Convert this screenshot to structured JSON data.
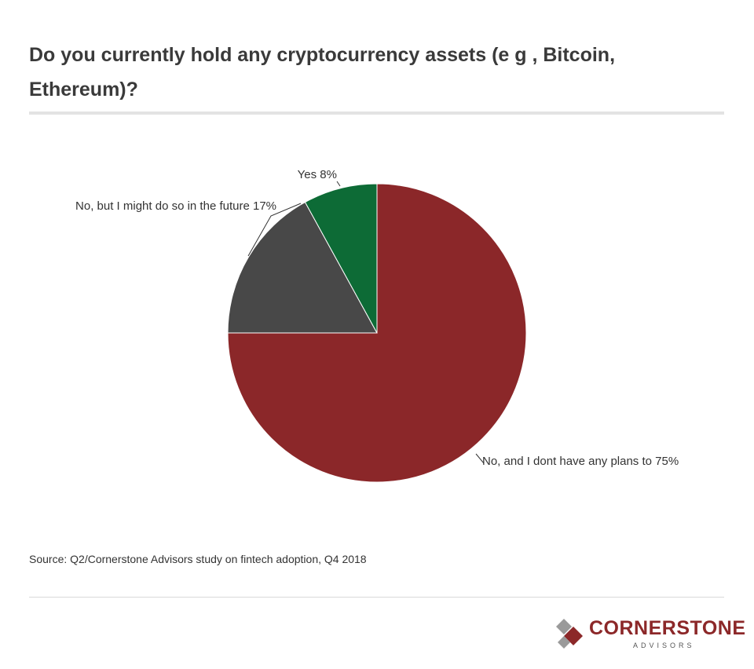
{
  "title": "Do you currently hold any cryptocurrency assets (e g , Bitcoin, Ethereum)?",
  "source": "Source: Q2/Cornerstone Advisors study on fintech adoption, Q4 2018",
  "logo": {
    "name": "CORNERSTONE",
    "sub": "ADVISORS"
  },
  "chart_data": {
    "type": "pie",
    "slices": [
      {
        "label": "No, and I dont have any plans to",
        "value": 75,
        "display": "No, and I dont have any plans to 75%",
        "color": "#8b2729"
      },
      {
        "label": "No, but I might do so in the future",
        "value": 17,
        "display": "No, but I might do so in the future 17%",
        "color": "#484848"
      },
      {
        "label": "Yes",
        "value": 8,
        "display": "Yes 8%",
        "color": "#0d6b36"
      }
    ]
  }
}
